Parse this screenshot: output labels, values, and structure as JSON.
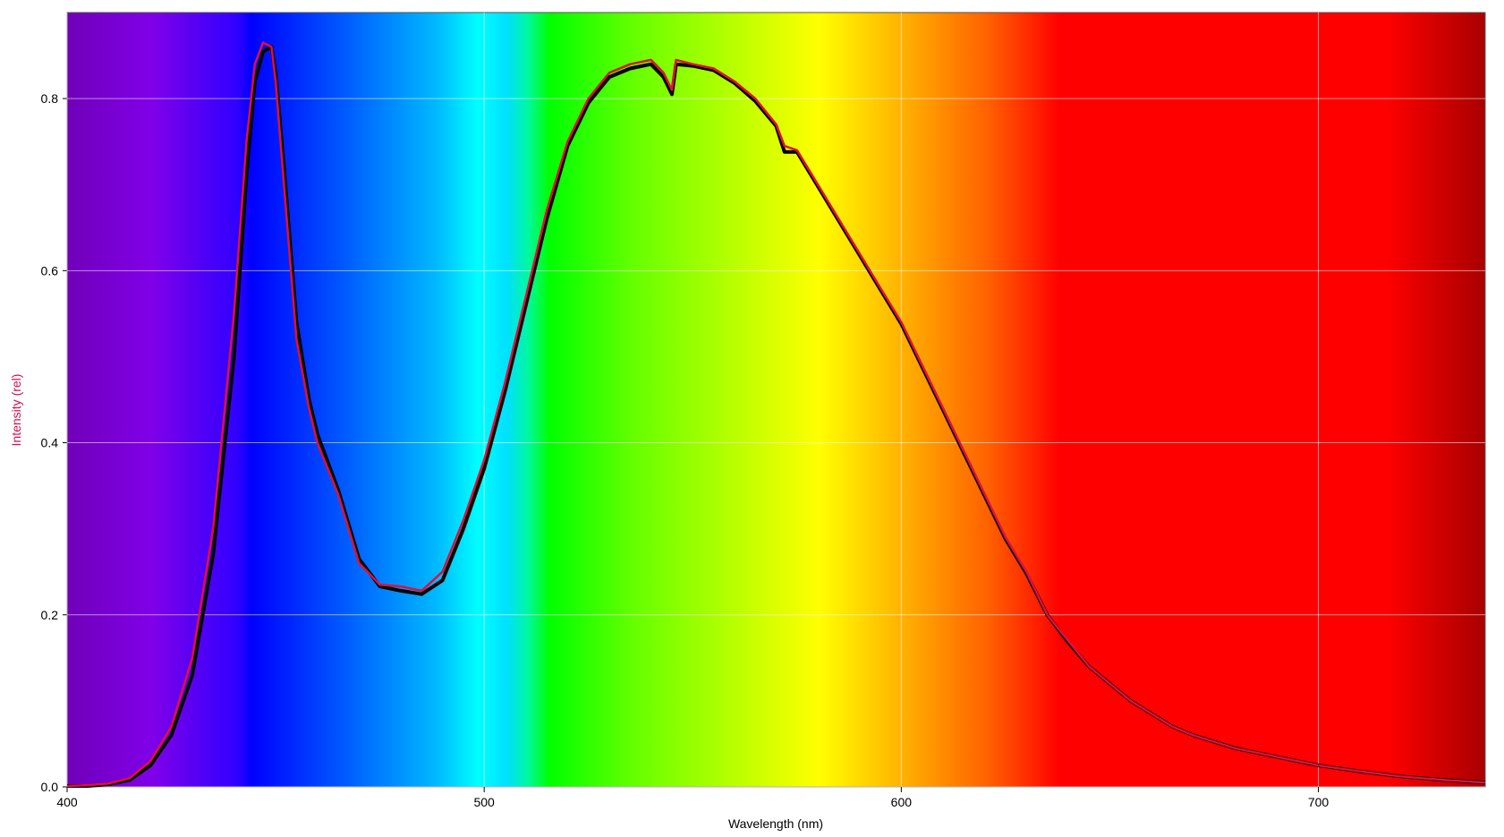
{
  "chart_data": {
    "type": "line",
    "xlabel": "Wavelength (nm)",
    "ylabel": "Intensity (rel)",
    "ylabel_color": "#d0104c",
    "x": [
      400,
      405,
      410,
      415,
      420,
      425,
      430,
      435,
      440,
      443,
      445,
      447,
      449,
      450,
      452,
      455,
      458,
      460,
      465,
      470,
      475,
      480,
      485,
      490,
      495,
      500,
      505,
      510,
      515,
      520,
      525,
      530,
      535,
      540,
      543,
      545,
      546,
      550,
      555,
      560,
      565,
      570,
      572,
      575,
      580,
      585,
      590,
      595,
      600,
      605,
      610,
      615,
      620,
      625,
      630,
      635,
      640,
      645,
      650,
      655,
      660,
      665,
      670,
      680,
      690,
      700,
      710,
      720,
      730,
      740
    ],
    "series": [
      {
        "color": "#000000",
        "values": [
          0.001,
          0.001,
          0.003,
          0.008,
          0.025,
          0.06,
          0.13,
          0.27,
          0.5,
          0.71,
          0.82,
          0.855,
          0.86,
          0.83,
          0.72,
          0.54,
          0.45,
          0.41,
          0.345,
          0.265,
          0.233,
          0.228,
          0.224,
          0.24,
          0.3,
          0.37,
          0.46,
          0.56,
          0.66,
          0.745,
          0.795,
          0.825,
          0.835,
          0.84,
          0.825,
          0.805,
          0.84,
          0.838,
          0.833,
          0.818,
          0.797,
          0.768,
          0.738,
          0.738,
          0.698,
          0.658,
          0.618,
          0.578,
          0.538,
          0.488,
          0.438,
          0.388,
          0.338,
          0.288,
          0.248,
          0.2,
          0.168,
          0.14,
          0.12,
          0.1,
          0.085,
          0.07,
          0.06,
          0.045,
          0.035,
          0.025,
          0.018,
          0.012,
          0.008,
          0.005
        ]
      },
      {
        "color": "#e0103c",
        "values": [
          0.001,
          0.002,
          0.004,
          0.01,
          0.03,
          0.07,
          0.15,
          0.3,
          0.55,
          0.75,
          0.84,
          0.865,
          0.86,
          0.82,
          0.7,
          0.52,
          0.44,
          0.4,
          0.34,
          0.26,
          0.235,
          0.233,
          0.228,
          0.25,
          0.31,
          0.38,
          0.47,
          0.57,
          0.67,
          0.75,
          0.8,
          0.83,
          0.84,
          0.845,
          0.83,
          0.81,
          0.845,
          0.84,
          0.835,
          0.82,
          0.8,
          0.77,
          0.745,
          0.74,
          0.7,
          0.66,
          0.62,
          0.58,
          0.54,
          0.49,
          0.44,
          0.39,
          0.34,
          0.29,
          0.25,
          0.2,
          0.17,
          0.14,
          0.12,
          0.1,
          0.085,
          0.07,
          0.06,
          0.045,
          0.035,
          0.025,
          0.018,
          0.012,
          0.008,
          0.005
        ]
      }
    ],
    "xlim": [
      400,
      740
    ],
    "ylim": [
      0,
      0.9
    ],
    "xticks": [
      400,
      500,
      600,
      700
    ],
    "yticks": [
      {
        "value": 0,
        "label": "0.0"
      },
      0.2,
      0.4,
      0.6,
      0.8
    ],
    "grid": true
  }
}
